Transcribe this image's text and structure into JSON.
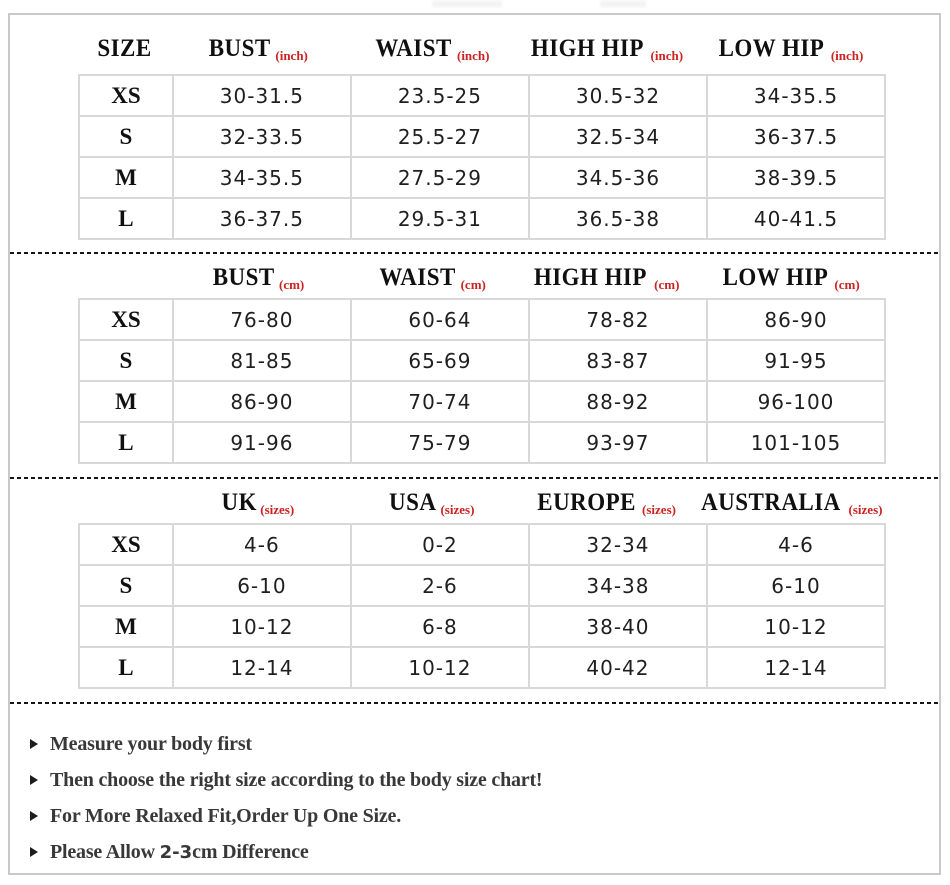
{
  "colors": {
    "accent_red": "#cc2222",
    "text_black": "#101010",
    "value_text": "#1f1f1f",
    "table_border_gray": "#d8d8d8",
    "frame_gray": "#c9c9c9",
    "note_text": "#383838"
  },
  "size_chart": {
    "sections": [
      {
        "name": "body-measurements-inch",
        "columns": [
          {
            "label": "SIZE",
            "unit": ""
          },
          {
            "label": "BUST",
            "unit": "(inch)"
          },
          {
            "label": "WAIST",
            "unit": "(inch)"
          },
          {
            "label": "HIGH HIP",
            "unit": "(inch)"
          },
          {
            "label": "LOW HIP",
            "unit": "(inch)"
          }
        ],
        "rows": [
          {
            "size": "XS",
            "values": [
              "30-31.5",
              "23.5-25",
              "30.5-32",
              "34-35.5"
            ]
          },
          {
            "size": "S",
            "values": [
              "32-33.5",
              "25.5-27",
              "32.5-34",
              "36-37.5"
            ]
          },
          {
            "size": "M",
            "values": [
              "34-35.5",
              "27.5-29",
              "34.5-36",
              "38-39.5"
            ]
          },
          {
            "size": "L",
            "values": [
              "36-37.5",
              "29.5-31",
              "36.5-38",
              "40-41.5"
            ]
          }
        ]
      },
      {
        "name": "body-measurements-cm",
        "columns": [
          {
            "label": "",
            "unit": ""
          },
          {
            "label": "BUST",
            "unit": "(cm)"
          },
          {
            "label": "WAIST",
            "unit": "(cm)"
          },
          {
            "label": "HIGH HIP",
            "unit": "(cm)"
          },
          {
            "label": "LOW HIP",
            "unit": "(cm)"
          }
        ],
        "rows": [
          {
            "size": "XS",
            "values": [
              "76-80",
              "60-64",
              "78-82",
              "86-90"
            ]
          },
          {
            "size": "S",
            "values": [
              "81-85",
              "65-69",
              "83-87",
              "91-95"
            ]
          },
          {
            "size": "M",
            "values": [
              "86-90",
              "70-74",
              "88-92",
              "96-100"
            ]
          },
          {
            "size": "L",
            "values": [
              "91-96",
              "75-79",
              "93-97",
              "101-105"
            ]
          }
        ]
      },
      {
        "name": "international-sizes",
        "columns": [
          {
            "label": "",
            "unit": ""
          },
          {
            "label": "UK",
            "unit": "(sizes)"
          },
          {
            "label": "USA",
            "unit": "(sizes)"
          },
          {
            "label": "EUROPE",
            "unit": "(sizes)"
          },
          {
            "label": "AUSTRALIA",
            "unit": "(sizes)"
          }
        ],
        "rows": [
          {
            "size": "XS",
            "values": [
              "4-6",
              "0-2",
              "32-34",
              "4-6"
            ]
          },
          {
            "size": "S",
            "values": [
              "6-10",
              "2-6",
              "34-38",
              "6-10"
            ]
          },
          {
            "size": "M",
            "values": [
              "10-12",
              "6-8",
              "38-40",
              "10-12"
            ]
          },
          {
            "size": "L",
            "values": [
              "12-14",
              "10-12",
              "40-42",
              "12-14"
            ]
          }
        ]
      }
    ],
    "notes": [
      {
        "parts": [
          {
            "text": "Measure your body first"
          }
        ]
      },
      {
        "parts": [
          {
            "text": "Then choose the right size according to the body size chart!"
          }
        ]
      },
      {
        "parts": [
          {
            "text": "For More Relaxed Fit,Order Up One Size."
          }
        ]
      },
      {
        "parts": [
          {
            "text": "Please Allow "
          },
          {
            "text": "2-3",
            "style": "highlight"
          },
          {
            "text": "cm Difference"
          }
        ]
      }
    ]
  }
}
